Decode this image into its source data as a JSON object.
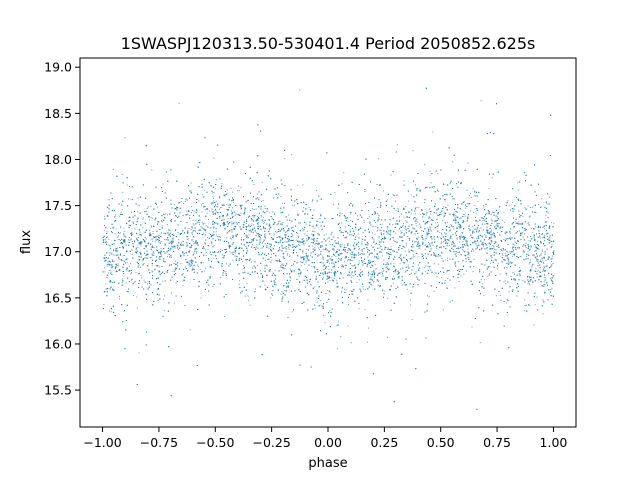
{
  "chart_data": {
    "type": "scatter",
    "title": "1SWASPJ120313.50-530401.4 Period 2050852.625s",
    "xlabel": "phase",
    "ylabel": "flux",
    "xlim": [
      -1.1,
      1.1
    ],
    "ylim": [
      15.1,
      19.1
    ],
    "xticks": [
      -1.0,
      -0.75,
      -0.5,
      -0.25,
      0.0,
      0.25,
      0.5,
      0.75,
      1.0
    ],
    "xtick_labels": [
      "−1.00",
      "−0.75",
      "−0.50",
      "−0.25",
      "0.00",
      "0.25",
      "0.50",
      "0.75",
      "1.00"
    ],
    "yticks": [
      15.5,
      16.0,
      16.5,
      17.0,
      17.5,
      18.0,
      18.5,
      19.0
    ],
    "ytick_labels": [
      "15.5",
      "16.0",
      "16.5",
      "17.0",
      "17.5",
      "18.0",
      "18.5",
      "19.0"
    ],
    "grid": false,
    "point_color": "#1f77b4",
    "series": [
      {
        "phase_range": [
          -1.0,
          1.0
        ],
        "flux_center_by_phase": [
          {
            "phase": -1.0,
            "flux": 16.95
          },
          {
            "phase": -0.75,
            "flux": 17.05
          },
          {
            "phase": -0.5,
            "flux": 17.25
          },
          {
            "phase": -0.25,
            "flux": 17.1
          },
          {
            "phase": 0.0,
            "flux": 16.92
          },
          {
            "phase": 0.25,
            "flux": 17.02
          },
          {
            "phase": 0.5,
            "flux": 17.25
          },
          {
            "phase": 0.75,
            "flux": 17.1
          },
          {
            "phase": 1.0,
            "flux": 16.95
          }
        ],
        "flux_core_range": [
          16.5,
          17.7
        ],
        "flux_extreme_range": [
          15.28,
          18.9
        ]
      }
    ]
  }
}
